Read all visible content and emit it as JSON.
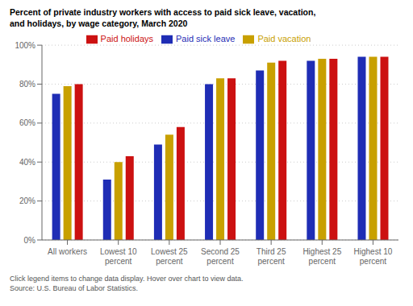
{
  "chart_data": {
    "type": "bar",
    "title": "Percent of private industry workers with access to paid sick leave, vacation,\nand holidays, by wage category, March 2020",
    "categories": [
      "All workers",
      "Lowest 10\npercent",
      "Lowest 25\npercent",
      "Second 25\npercent",
      "Third 25\npercent",
      "Highest 25\npercent",
      "Highest 10\npercent"
    ],
    "series": [
      {
        "name": "Paid sick leave",
        "color": "#1f2db5",
        "values": [
          75,
          31,
          49,
          80,
          87,
          92,
          94
        ]
      },
      {
        "name": "Paid vacation",
        "color": "#c8a000",
        "values": [
          79,
          40,
          54,
          83,
          91,
          93,
          94
        ]
      },
      {
        "name": "Paid holidays",
        "color": "#cc1111",
        "values": [
          80,
          43,
          58,
          83,
          92,
          93,
          94
        ]
      }
    ],
    "ylim": [
      0,
      100
    ],
    "yticks": [
      {
        "value": 0,
        "label": "0%"
      },
      {
        "value": 20,
        "label": "20%"
      },
      {
        "value": 40,
        "label": "40%"
      },
      {
        "value": 60,
        "label": "60%"
      },
      {
        "value": 80,
        "label": "80%"
      },
      {
        "value": 100,
        "label": "100%"
      }
    ],
    "grid": true,
    "legend": "top",
    "annotations": [
      "Click legend items to change data display. Hover over chart to view data.",
      "Source: U.S. Bureau of Labor Statistics."
    ]
  }
}
